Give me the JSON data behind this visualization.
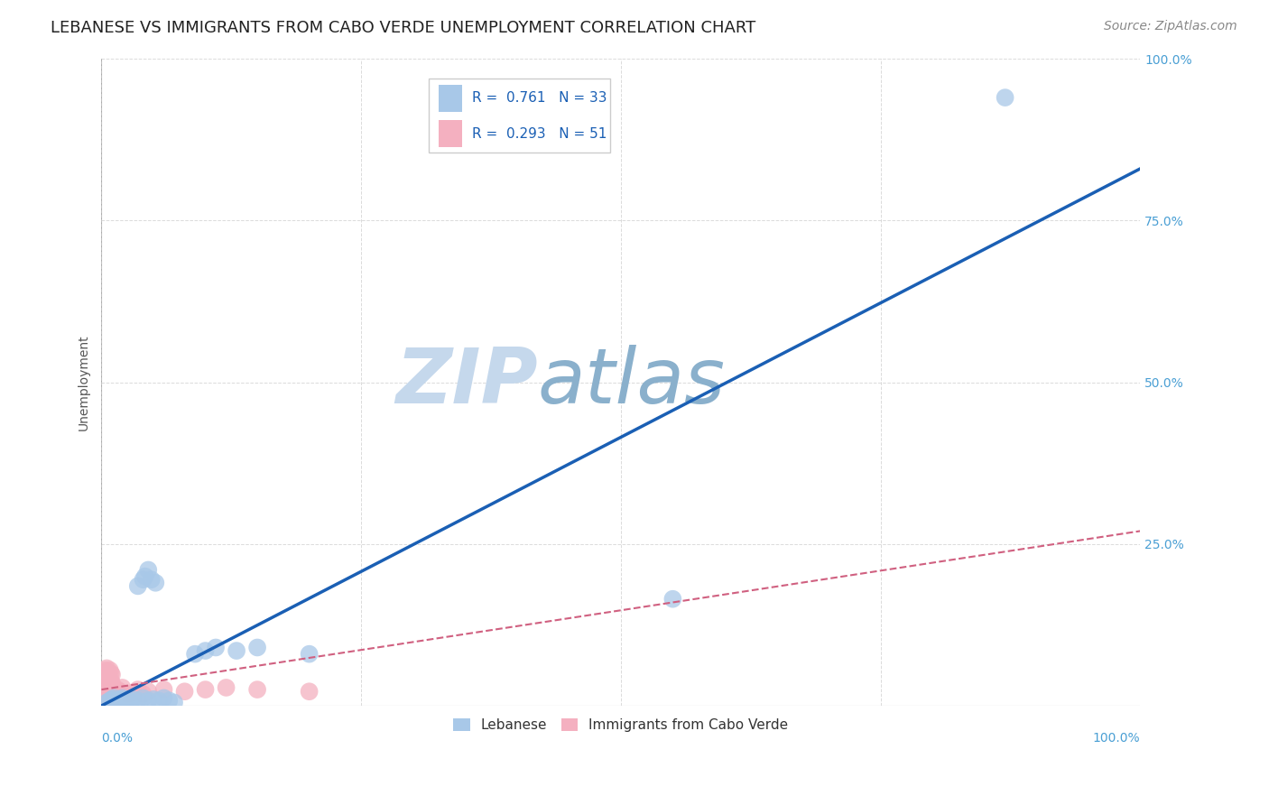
{
  "title": "LEBANESE VS IMMIGRANTS FROM CABO VERDE UNEMPLOYMENT CORRELATION CHART",
  "source": "Source: ZipAtlas.com",
  "ylabel": "Unemployment",
  "y_ticks": [
    0.0,
    0.25,
    0.5,
    0.75,
    1.0
  ],
  "y_tick_labels": [
    "",
    "25.0%",
    "50.0%",
    "75.0%",
    "100.0%"
  ],
  "x_lim": [
    0,
    1.0
  ],
  "y_lim": [
    0,
    1.0
  ],
  "legend_label1": "Lebanese",
  "legend_label2": "Immigrants from Cabo Verde",
  "R1": "0.761",
  "N1": "33",
  "R2": "0.293",
  "N2": "51",
  "color_blue": "#a8c8e8",
  "color_pink": "#f4b0c0",
  "color_line_blue": "#1a5fb4",
  "color_line_pink": "#d06080",
  "color_ytick": "#4a9fd4",
  "watermark_zip_color": "#ccd8e8",
  "watermark_atlas_color": "#9ab8d0",
  "background_color": "#ffffff",
  "grid_color": "#cccccc",
  "blue_scatter_x": [
    0.005,
    0.008,
    0.01,
    0.012,
    0.015,
    0.018,
    0.02,
    0.022,
    0.025,
    0.028,
    0.03,
    0.035,
    0.04,
    0.045,
    0.05,
    0.055,
    0.06,
    0.065,
    0.07,
    0.035,
    0.04,
    0.042,
    0.045,
    0.048,
    0.052,
    0.09,
    0.1,
    0.11,
    0.13,
    0.15,
    0.2,
    0.55,
    0.87
  ],
  "blue_scatter_y": [
    0.005,
    0.008,
    0.01,
    0.012,
    0.008,
    0.01,
    0.012,
    0.008,
    0.01,
    0.005,
    0.01,
    0.008,
    0.012,
    0.008,
    0.01,
    0.008,
    0.012,
    0.008,
    0.005,
    0.185,
    0.195,
    0.2,
    0.21,
    0.195,
    0.19,
    0.08,
    0.085,
    0.09,
    0.085,
    0.09,
    0.08,
    0.165,
    0.94
  ],
  "pink_scatter_x": [
    0.002,
    0.003,
    0.004,
    0.005,
    0.006,
    0.007,
    0.008,
    0.009,
    0.01,
    0.002,
    0.003,
    0.004,
    0.005,
    0.006,
    0.007,
    0.008,
    0.009,
    0.01,
    0.002,
    0.003,
    0.004,
    0.005,
    0.006,
    0.007,
    0.008,
    0.009,
    0.01,
    0.002,
    0.003,
    0.004,
    0.005,
    0.006,
    0.007,
    0.008,
    0.009,
    0.01,
    0.012,
    0.015,
    0.018,
    0.02,
    0.025,
    0.03,
    0.035,
    0.04,
    0.045,
    0.06,
    0.08,
    0.1,
    0.12,
    0.15,
    0.2
  ],
  "pink_scatter_y": [
    0.005,
    0.008,
    0.01,
    0.012,
    0.015,
    0.01,
    0.012,
    0.008,
    0.01,
    0.02,
    0.022,
    0.025,
    0.028,
    0.03,
    0.025,
    0.022,
    0.02,
    0.018,
    0.035,
    0.038,
    0.04,
    0.042,
    0.038,
    0.035,
    0.04,
    0.038,
    0.035,
    0.05,
    0.052,
    0.055,
    0.058,
    0.052,
    0.048,
    0.055,
    0.05,
    0.048,
    0.02,
    0.025,
    0.022,
    0.028,
    0.018,
    0.02,
    0.025,
    0.018,
    0.022,
    0.025,
    0.022,
    0.025,
    0.028,
    0.025,
    0.022
  ],
  "blue_line_x": [
    0.0,
    1.0
  ],
  "blue_line_y": [
    0.0,
    0.83
  ],
  "pink_line_x": [
    0.0,
    1.0
  ],
  "pink_line_y": [
    0.025,
    0.27
  ],
  "title_fontsize": 13,
  "axis_label_fontsize": 10,
  "tick_fontsize": 10,
  "legend_fontsize": 11,
  "source_fontsize": 10
}
